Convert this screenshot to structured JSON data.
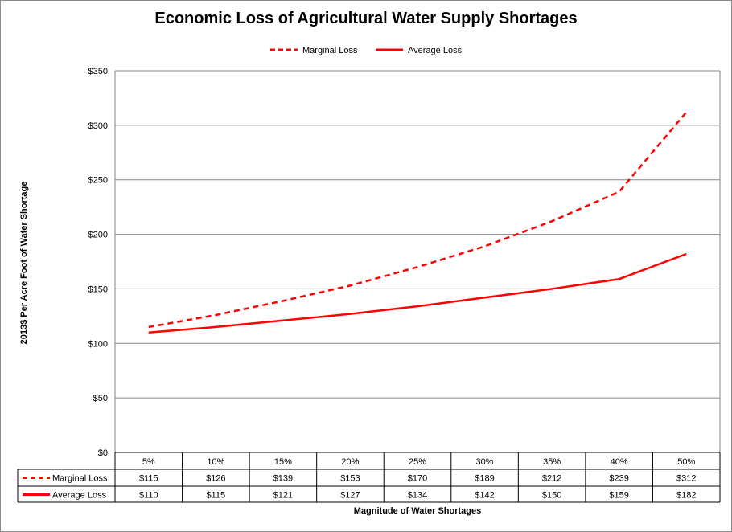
{
  "chart_data": {
    "type": "line",
    "title": "Economic Loss of Agricultural Water Supply Shortages",
    "xlabel": "Magnitude  of Water Shortages",
    "ylabel": "2013$ Per Acre Foot of Water Shortage",
    "categories": [
      "5%",
      "10%",
      "15%",
      "20%",
      "25%",
      "30%",
      "35%",
      "40%",
      "50%"
    ],
    "ylim": [
      0,
      350
    ],
    "yticks": [
      0,
      50,
      100,
      150,
      200,
      250,
      300,
      350
    ],
    "ytick_labels": [
      "$0",
      "$50",
      "$100",
      "$150",
      "$200",
      "$250",
      "$300",
      "$350"
    ],
    "grid": "horizontal",
    "legend_position": "top-center",
    "data_table": true,
    "series": [
      {
        "name": "Marginal Loss",
        "style": "dashed",
        "color": "#ff0000",
        "values": [
          115,
          126,
          139,
          153,
          170,
          189,
          212,
          239,
          312
        ],
        "labels": [
          "$115",
          "$126",
          "$139",
          "$153",
          "$170",
          "$189",
          "$212",
          "$239",
          "$312"
        ]
      },
      {
        "name": "Average Loss",
        "style": "solid",
        "color": "#ff0000",
        "values": [
          110,
          115,
          121,
          127,
          134,
          142,
          150,
          159,
          182
        ],
        "labels": [
          "$110",
          "$115",
          "$121",
          "$127",
          "$134",
          "$142",
          "$150",
          "$159",
          "$182"
        ]
      }
    ]
  }
}
